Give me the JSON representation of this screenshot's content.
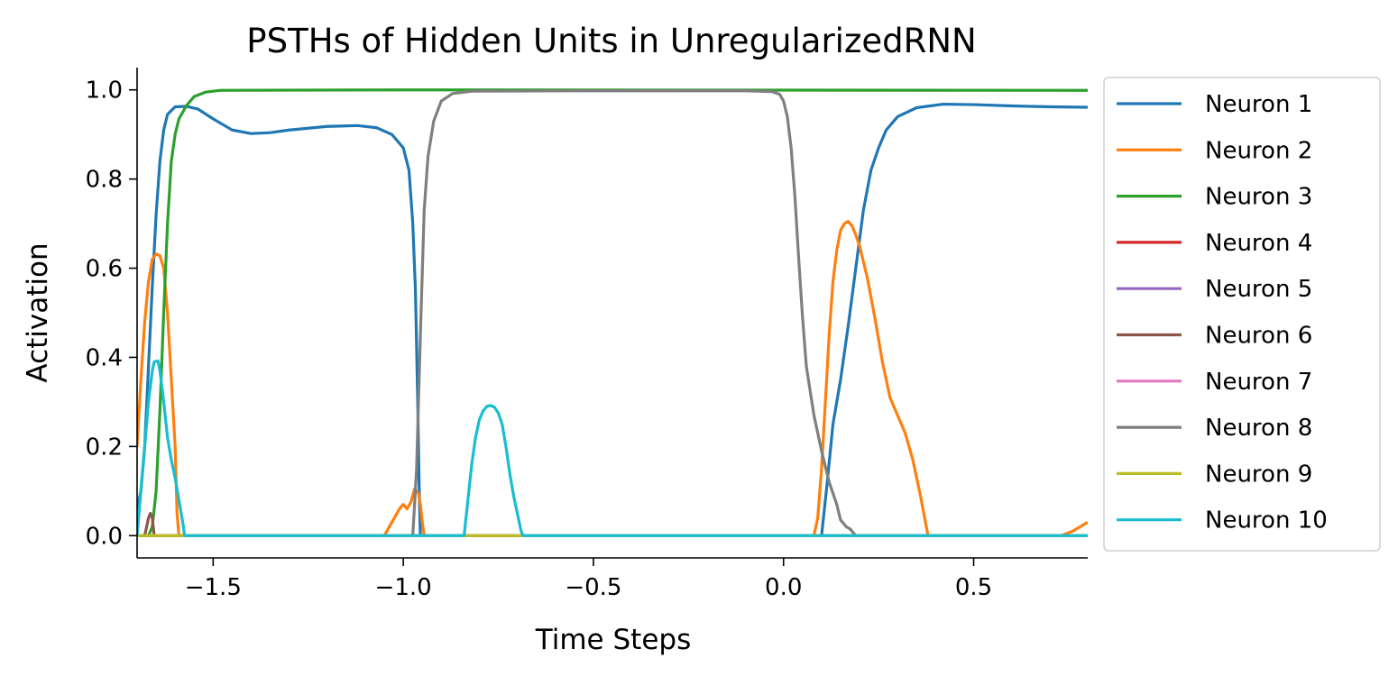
{
  "chart_data": {
    "type": "line",
    "title": "PSTHs of Hidden Units in UnregularizedRNN",
    "xlabel": "Time Steps",
    "ylabel": "Activation",
    "xlim": [
      -1.7,
      0.8
    ],
    "ylim": [
      -0.05,
      1.05
    ],
    "xticks": [
      -1.5,
      -1.0,
      -0.5,
      0.0,
      0.5
    ],
    "xtick_labels": [
      "−1.5",
      "−1.0",
      "−0.5",
      "0.0",
      "0.5"
    ],
    "yticks": [
      0.0,
      0.2,
      0.4,
      0.6,
      0.8,
      1.0
    ],
    "ytick_labels": [
      "0.0",
      "0.2",
      "0.4",
      "0.6",
      "0.8",
      "1.0"
    ],
    "grid": false,
    "legend_position": "outside-right",
    "series": [
      {
        "name": "Neuron 1",
        "color": "#1f77b4",
        "points": [
          [
            -1.7,
            0.06
          ],
          [
            -1.69,
            0.1
          ],
          [
            -1.68,
            0.2
          ],
          [
            -1.67,
            0.38
          ],
          [
            -1.66,
            0.56
          ],
          [
            -1.65,
            0.72
          ],
          [
            -1.64,
            0.84
          ],
          [
            -1.63,
            0.91
          ],
          [
            -1.62,
            0.945
          ],
          [
            -1.6,
            0.962
          ],
          [
            -1.57,
            0.963
          ],
          [
            -1.54,
            0.957
          ],
          [
            -1.5,
            0.935
          ],
          [
            -1.45,
            0.91
          ],
          [
            -1.4,
            0.902
          ],
          [
            -1.35,
            0.904
          ],
          [
            -1.3,
            0.91
          ],
          [
            -1.2,
            0.918
          ],
          [
            -1.12,
            0.92
          ],
          [
            -1.07,
            0.915
          ],
          [
            -1.03,
            0.9
          ],
          [
            -1.0,
            0.87
          ],
          [
            -0.985,
            0.82
          ],
          [
            -0.975,
            0.7
          ],
          [
            -0.968,
            0.55
          ],
          [
            -0.962,
            0.3
          ],
          [
            -0.958,
            0.1
          ],
          [
            -0.955,
            0.0
          ],
          [
            0.1,
            0.0
          ],
          [
            0.115,
            0.12
          ],
          [
            0.13,
            0.25
          ],
          [
            0.15,
            0.35
          ],
          [
            0.17,
            0.47
          ],
          [
            0.19,
            0.6
          ],
          [
            0.21,
            0.73
          ],
          [
            0.23,
            0.82
          ],
          [
            0.25,
            0.87
          ],
          [
            0.27,
            0.91
          ],
          [
            0.3,
            0.94
          ],
          [
            0.35,
            0.96
          ],
          [
            0.42,
            0.968
          ],
          [
            0.5,
            0.967
          ],
          [
            0.6,
            0.964
          ],
          [
            0.7,
            0.962
          ],
          [
            0.8,
            0.961
          ]
        ]
      },
      {
        "name": "Neuron 2",
        "color": "#ff7f0e",
        "points": [
          [
            -1.7,
            0.2
          ],
          [
            -1.69,
            0.35
          ],
          [
            -1.68,
            0.48
          ],
          [
            -1.67,
            0.57
          ],
          [
            -1.66,
            0.62
          ],
          [
            -1.65,
            0.632
          ],
          [
            -1.64,
            0.628
          ],
          [
            -1.63,
            0.6
          ],
          [
            -1.62,
            0.5
          ],
          [
            -1.61,
            0.35
          ],
          [
            -1.6,
            0.2
          ],
          [
            -1.595,
            0.05
          ],
          [
            -1.59,
            0.0
          ],
          [
            -1.05,
            0.0
          ],
          [
            -1.03,
            0.03
          ],
          [
            -1.01,
            0.06
          ],
          [
            -1.0,
            0.07
          ],
          [
            -0.99,
            0.06
          ],
          [
            -0.98,
            0.075
          ],
          [
            -0.97,
            0.105
          ],
          [
            -0.96,
            0.095
          ],
          [
            -0.955,
            0.07
          ],
          [
            -0.95,
            0.03
          ],
          [
            -0.945,
            0.0
          ],
          [
            0.08,
            0.0
          ],
          [
            0.09,
            0.04
          ],
          [
            0.1,
            0.15
          ],
          [
            0.11,
            0.3
          ],
          [
            0.12,
            0.45
          ],
          [
            0.13,
            0.57
          ],
          [
            0.14,
            0.64
          ],
          [
            0.15,
            0.685
          ],
          [
            0.16,
            0.7
          ],
          [
            0.17,
            0.705
          ],
          [
            0.18,
            0.695
          ],
          [
            0.19,
            0.675
          ],
          [
            0.2,
            0.65
          ],
          [
            0.22,
            0.58
          ],
          [
            0.24,
            0.49
          ],
          [
            0.26,
            0.39
          ],
          [
            0.28,
            0.31
          ],
          [
            0.3,
            0.27
          ],
          [
            0.32,
            0.23
          ],
          [
            0.34,
            0.17
          ],
          [
            0.36,
            0.09
          ],
          [
            0.38,
            0.0
          ],
          [
            0.73,
            0.0
          ],
          [
            0.76,
            0.01
          ],
          [
            0.8,
            0.03
          ]
        ]
      },
      {
        "name": "Neuron 3",
        "color": "#2ca02c",
        "points": [
          [
            -1.7,
            0.0
          ],
          [
            -1.67,
            0.0
          ],
          [
            -1.66,
            0.02
          ],
          [
            -1.65,
            0.1
          ],
          [
            -1.64,
            0.28
          ],
          [
            -1.63,
            0.5
          ],
          [
            -1.62,
            0.7
          ],
          [
            -1.61,
            0.84
          ],
          [
            -1.6,
            0.9
          ],
          [
            -1.59,
            0.935
          ],
          [
            -1.57,
            0.965
          ],
          [
            -1.55,
            0.985
          ],
          [
            -1.52,
            0.995
          ],
          [
            -1.48,
            0.999
          ],
          [
            -1.0,
            1.0
          ],
          [
            0.8,
            0.999
          ]
        ]
      },
      {
        "name": "Neuron 4",
        "color": "#d62728",
        "points": [
          [
            -1.7,
            0.0
          ],
          [
            0.8,
            0.0
          ]
        ]
      },
      {
        "name": "Neuron 5",
        "color": "#9467bd",
        "points": [
          [
            -1.7,
            0.0
          ],
          [
            0.8,
            0.0
          ]
        ]
      },
      {
        "name": "Neuron 6",
        "color": "#8c564b",
        "points": [
          [
            -1.7,
            0.0
          ],
          [
            -1.68,
            0.0
          ],
          [
            -1.675,
            0.02
          ],
          [
            -1.67,
            0.04
          ],
          [
            -1.665,
            0.05
          ],
          [
            -1.66,
            0.04
          ],
          [
            -1.655,
            0.0
          ],
          [
            0.8,
            0.0
          ]
        ]
      },
      {
        "name": "Neuron 7",
        "color": "#e377c2",
        "points": [
          [
            -1.7,
            0.0
          ],
          [
            0.8,
            0.0
          ]
        ]
      },
      {
        "name": "Neuron 8",
        "color": "#7f7f7f",
        "points": [
          [
            -1.7,
            0.0
          ],
          [
            -0.975,
            0.0
          ],
          [
            -0.965,
            0.15
          ],
          [
            -0.955,
            0.45
          ],
          [
            -0.945,
            0.73
          ],
          [
            -0.935,
            0.85
          ],
          [
            -0.92,
            0.93
          ],
          [
            -0.9,
            0.975
          ],
          [
            -0.87,
            0.992
          ],
          [
            -0.82,
            0.997
          ],
          [
            -0.5,
            0.998
          ],
          [
            -0.1,
            0.998
          ],
          [
            -0.03,
            0.996
          ],
          [
            -0.01,
            0.99
          ],
          [
            0.0,
            0.975
          ],
          [
            0.01,
            0.94
          ],
          [
            0.02,
            0.87
          ],
          [
            0.03,
            0.76
          ],
          [
            0.04,
            0.62
          ],
          [
            0.05,
            0.49
          ],
          [
            0.06,
            0.38
          ],
          [
            0.08,
            0.27
          ],
          [
            0.1,
            0.19
          ],
          [
            0.12,
            0.12
          ],
          [
            0.14,
            0.07
          ],
          [
            0.15,
            0.035
          ],
          [
            0.165,
            0.02
          ],
          [
            0.175,
            0.015
          ],
          [
            0.185,
            0.005
          ],
          [
            0.19,
            0.0
          ],
          [
            0.8,
            0.0
          ]
        ]
      },
      {
        "name": "Neuron 9",
        "color": "#bcbd22",
        "points": [
          [
            -1.7,
            0.0
          ],
          [
            0.8,
            0.0
          ]
        ]
      },
      {
        "name": "Neuron 10",
        "color": "#17becf",
        "points": [
          [
            -1.7,
            0.0
          ],
          [
            -1.69,
            0.1
          ],
          [
            -1.68,
            0.2
          ],
          [
            -1.67,
            0.3
          ],
          [
            -1.66,
            0.37
          ],
          [
            -1.655,
            0.39
          ],
          [
            -1.645,
            0.392
          ],
          [
            -1.64,
            0.37
          ],
          [
            -1.63,
            0.3
          ],
          [
            -1.62,
            0.22
          ],
          [
            -1.61,
            0.17
          ],
          [
            -1.6,
            0.13
          ],
          [
            -1.59,
            0.08
          ],
          [
            -1.58,
            0.03
          ],
          [
            -1.575,
            0.0
          ],
          [
            -0.84,
            0.0
          ],
          [
            -0.83,
            0.08
          ],
          [
            -0.82,
            0.16
          ],
          [
            -0.81,
            0.22
          ],
          [
            -0.8,
            0.26
          ],
          [
            -0.79,
            0.28
          ],
          [
            -0.78,
            0.29
          ],
          [
            -0.77,
            0.292
          ],
          [
            -0.76,
            0.288
          ],
          [
            -0.75,
            0.275
          ],
          [
            -0.74,
            0.25
          ],
          [
            -0.73,
            0.2
          ],
          [
            -0.72,
            0.14
          ],
          [
            -0.71,
            0.09
          ],
          [
            -0.7,
            0.05
          ],
          [
            -0.69,
            0.01
          ],
          [
            -0.685,
            0.0
          ],
          [
            0.8,
            0.0
          ]
        ]
      }
    ]
  }
}
